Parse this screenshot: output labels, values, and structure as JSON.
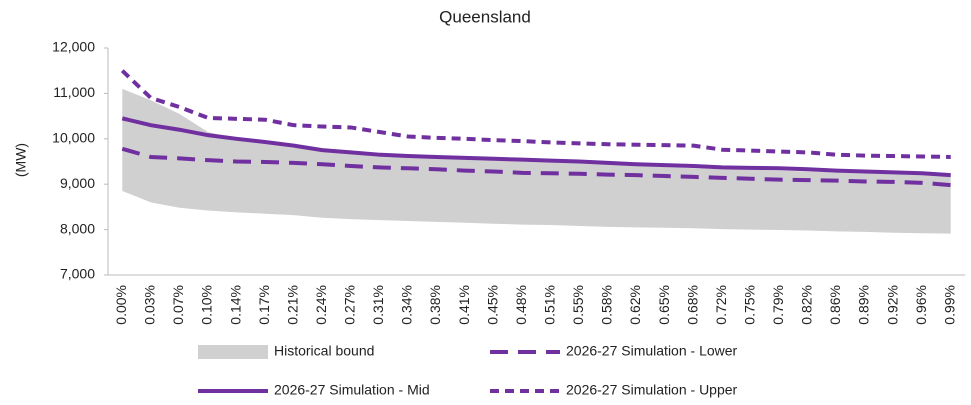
{
  "chart_data": {
    "type": "line",
    "title": "Queensland",
    "y_label": "(MW)",
    "categories": [
      "0.00%",
      "0.03%",
      "0.07%",
      "0.10%",
      "0.14%",
      "0.17%",
      "0.21%",
      "0.24%",
      "0.27%",
      "0.31%",
      "0.34%",
      "0.38%",
      "0.41%",
      "0.45%",
      "0.48%",
      "0.51%",
      "0.55%",
      "0.58%",
      "0.62%",
      "0.65%",
      "0.68%",
      "0.72%",
      "0.75%",
      "0.79%",
      "0.82%",
      "0.86%",
      "0.89%",
      "0.92%",
      "0.96%",
      "0.99%"
    ],
    "ylim": [
      7000,
      12000
    ],
    "yticks": [
      {
        "value": 7000,
        "label": "7,000"
      },
      {
        "value": 8000,
        "label": "8,000"
      },
      {
        "value": 9000,
        "label": "9,000"
      },
      {
        "value": 10000,
        "label": "10,000"
      },
      {
        "value": 11000,
        "label": "11,000"
      },
      {
        "value": 12000,
        "label": "12,000"
      }
    ],
    "series": [
      {
        "name": "Historical bound",
        "color": "#d0d0d0",
        "style": "range",
        "values": [
          11100,
          10850,
          10550,
          10150,
          10000,
          9900,
          9800,
          9750,
          9700,
          9650,
          9620,
          9600,
          9570,
          9550,
          9520,
          9500,
          9470,
          9440,
          9400,
          9380,
          9350,
          9330,
          9320,
          9300,
          9280,
          9260,
          9240,
          9220,
          9200,
          9180
        ],
        "lower": [
          8850,
          8600,
          8480,
          8420,
          8380,
          8350,
          8320,
          8260,
          8230,
          8210,
          8190,
          8170,
          8150,
          8130,
          8110,
          8100,
          8080,
          8060,
          8050,
          8040,
          8030,
          8010,
          8000,
          7990,
          7980,
          7960,
          7950,
          7930,
          7920,
          7910
        ]
      },
      {
        "name": "2026-27 Simulation - Lower",
        "color": "#7030a0",
        "style": "long-dash",
        "values": [
          9780,
          9600,
          9570,
          9530,
          9500,
          9490,
          9470,
          9440,
          9400,
          9370,
          9350,
          9330,
          9300,
          9280,
          9250,
          9240,
          9230,
          9210,
          9200,
          9180,
          9160,
          9140,
          9120,
          9100,
          9090,
          9080,
          9060,
          9050,
          9030,
          8980
        ]
      },
      {
        "name": "2026-27 Simulation - Mid",
        "color": "#7030a0",
        "style": "solid",
        "values": [
          10450,
          10300,
          10200,
          10080,
          10000,
          9930,
          9850,
          9750,
          9700,
          9650,
          9620,
          9600,
          9580,
          9560,
          9540,
          9520,
          9500,
          9470,
          9440,
          9420,
          9400,
          9370,
          9360,
          9350,
          9330,
          9300,
          9280,
          9260,
          9240,
          9200
        ]
      },
      {
        "name": "2026-27 Simulation - Upper",
        "color": "#7030a0",
        "style": "dash",
        "values": [
          11500,
          10900,
          10700,
          10460,
          10440,
          10420,
          10300,
          10270,
          10250,
          10150,
          10050,
          10020,
          10000,
          9970,
          9950,
          9920,
          9900,
          9880,
          9870,
          9860,
          9850,
          9760,
          9740,
          9720,
          9700,
          9650,
          9630,
          9620,
          9610,
          9600
        ]
      }
    ]
  }
}
